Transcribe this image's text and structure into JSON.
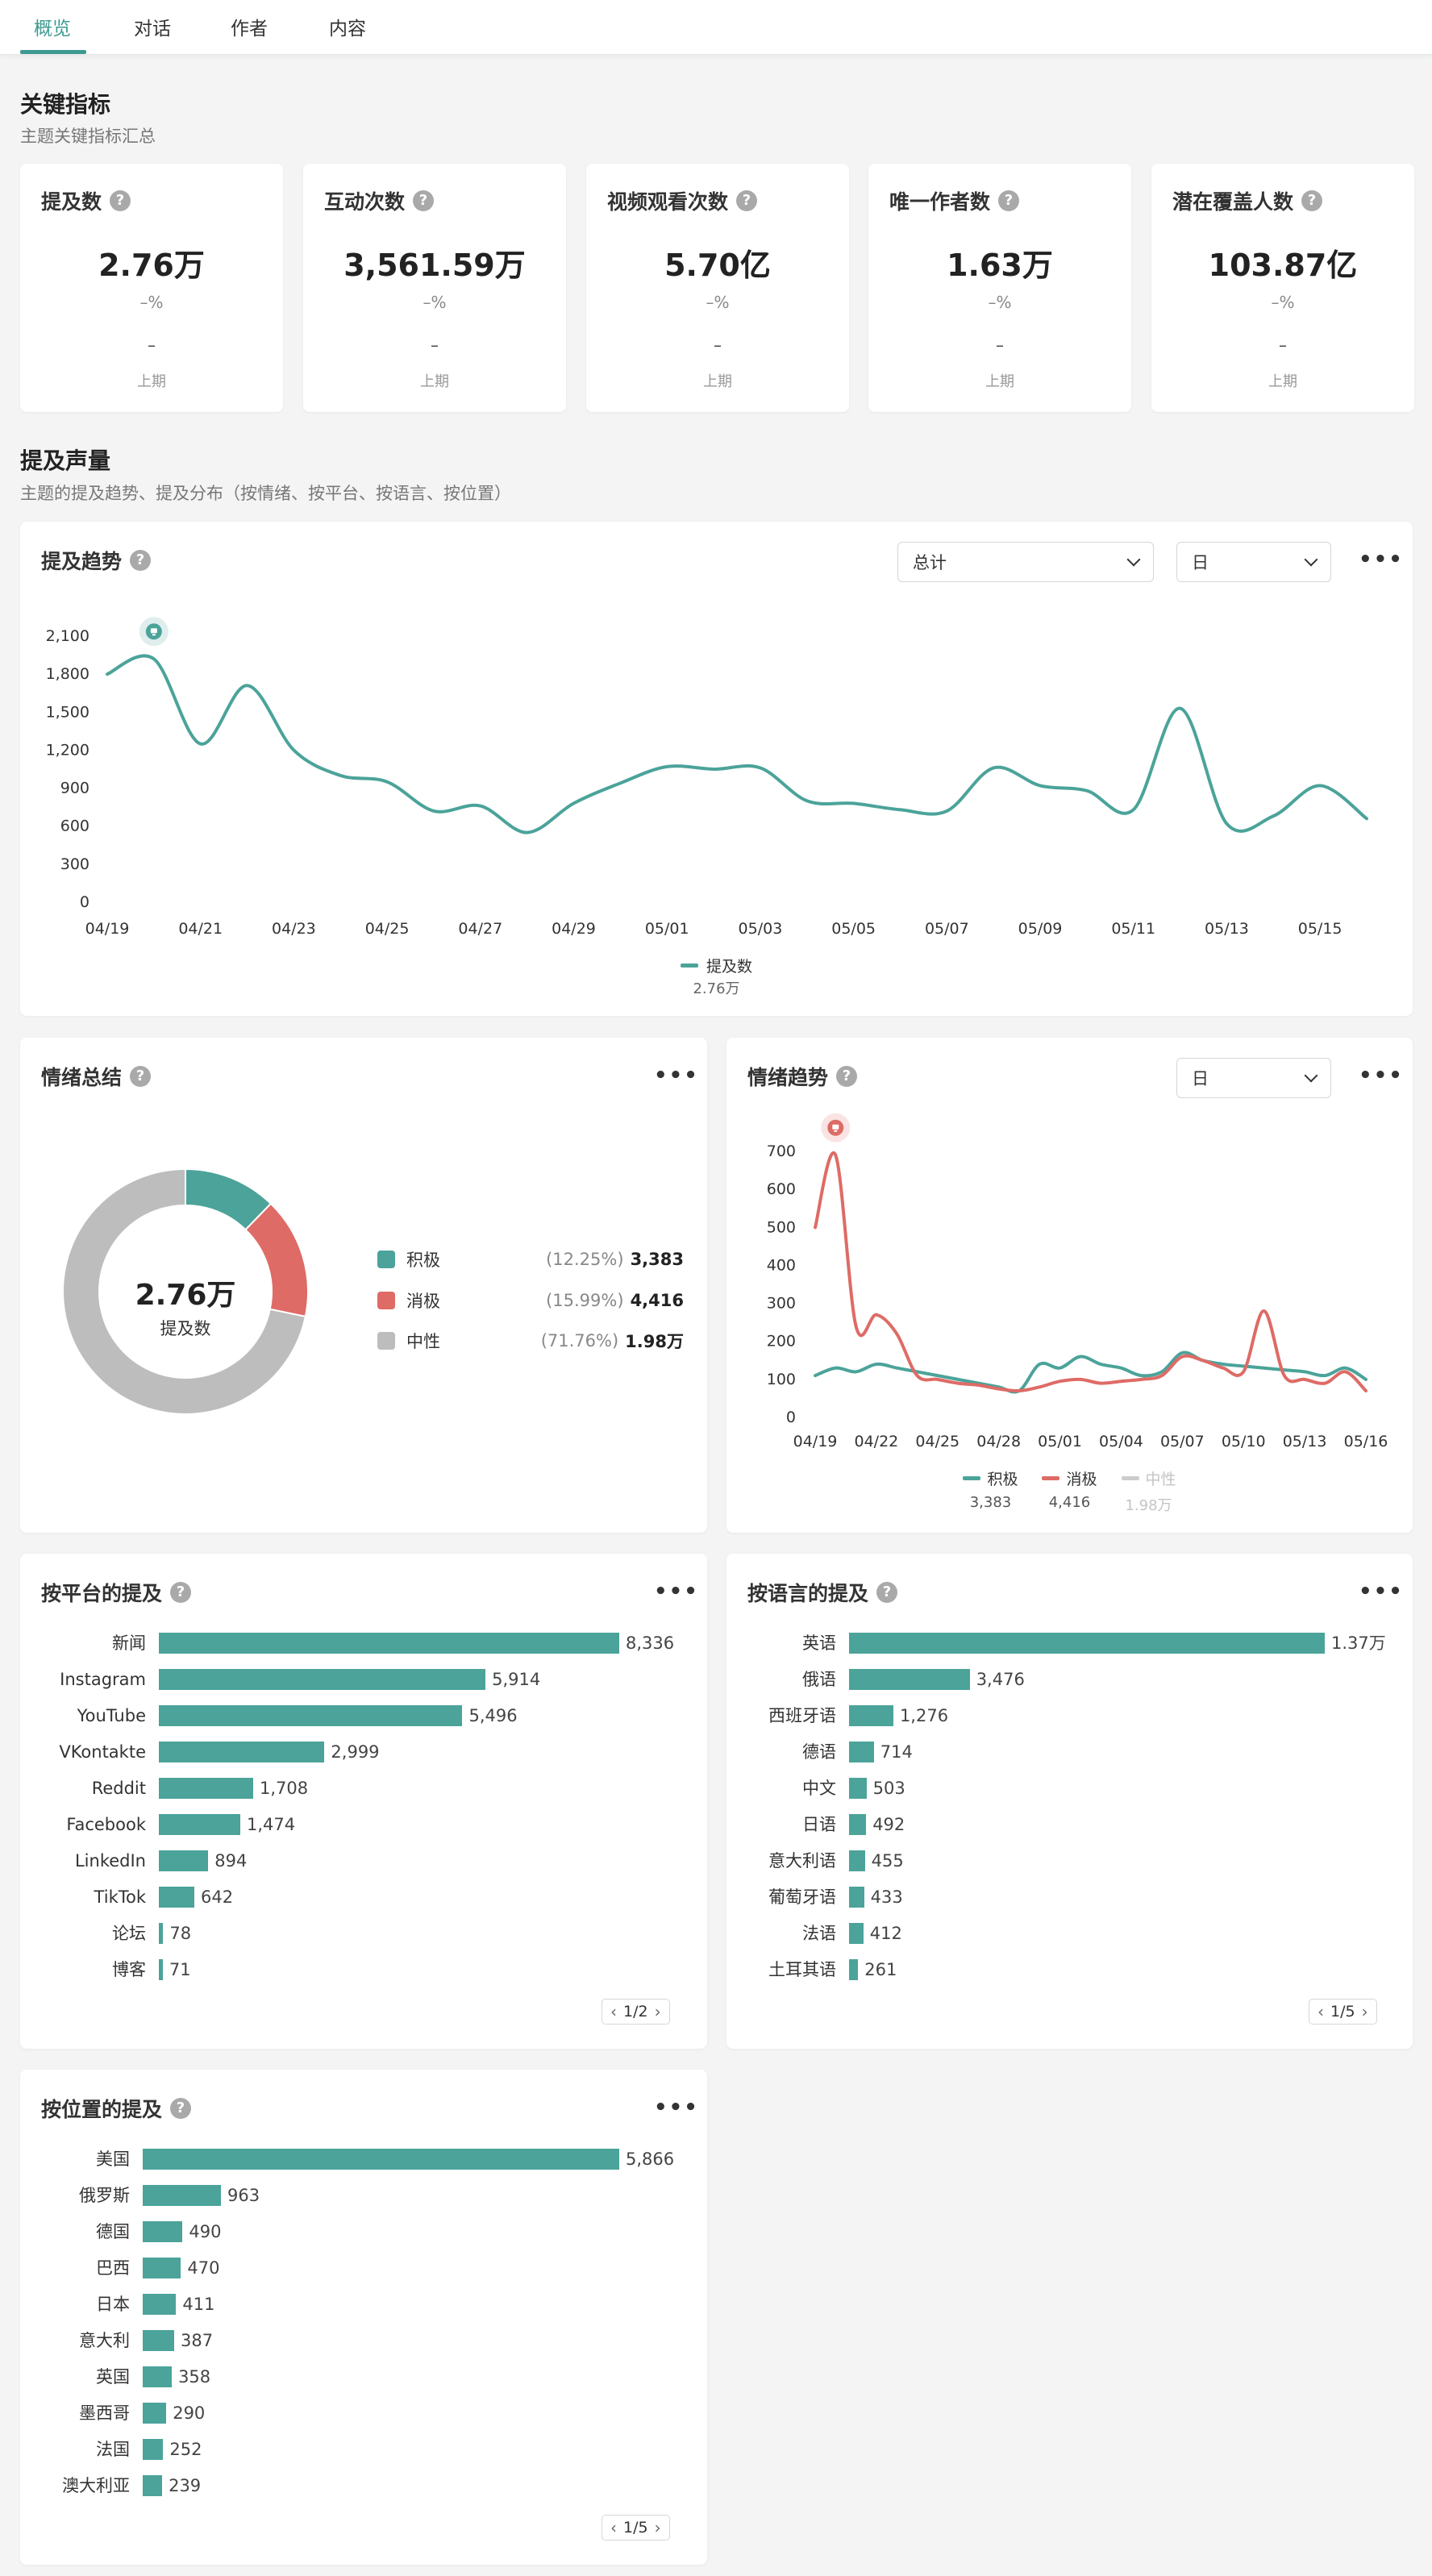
{
  "tabs": [
    {
      "label": "概览",
      "active": true
    },
    {
      "label": "对话",
      "active": false
    },
    {
      "label": "作者",
      "active": false
    },
    {
      "label": "内容",
      "active": false
    }
  ],
  "key_metrics": {
    "title": "关键指标",
    "subtitle": "主题关键指标汇总",
    "cards": [
      {
        "title": "提及数",
        "value": "2.76万",
        "pct": "–%",
        "dash": "–",
        "prev": "上期"
      },
      {
        "title": "互动次数",
        "value": "3,561.59万",
        "pct": "–%",
        "dash": "–",
        "prev": "上期"
      },
      {
        "title": "视频观看次数",
        "value": "5.70亿",
        "pct": "–%",
        "dash": "–",
        "prev": "上期"
      },
      {
        "title": "唯一作者数",
        "value": "1.63万",
        "pct": "–%",
        "dash": "–",
        "prev": "上期"
      },
      {
        "title": "潜在覆盖人数",
        "value": "103.87亿",
        "pct": "–%",
        "dash": "–",
        "prev": "上期"
      }
    ]
  },
  "volume": {
    "title": "提及声量",
    "subtitle": "主题的提及趋势、提及分布（按情绪、按平台、按语言、按位置）"
  },
  "help_glyph": "?",
  "more_glyph": "•••",
  "trend_card": {
    "title": "提及趋势",
    "dropdown_total": "总计",
    "dropdown_period": "日",
    "legend_name": "提及数",
    "legend_value": "2.76万"
  },
  "sentiment_summary": {
    "title": "情绪总结",
    "center_value": "2.76万",
    "center_label": "提及数",
    "items": [
      {
        "label": "积极",
        "pct": "(12.25%)",
        "value": "3,383",
        "color": "#4ba39a"
      },
      {
        "label": "消极",
        "pct": "(15.99%)",
        "value": "4,416",
        "color": "#de6b66"
      },
      {
        "label": "中性",
        "pct": "(71.76%)",
        "value": "1.98万",
        "color": "#bdbdbd"
      }
    ]
  },
  "sentiment_trend_card": {
    "title": "情绪趋势",
    "dropdown_period": "日",
    "legend": [
      {
        "name": "积极",
        "value": "3,383",
        "color": "#4ba39a"
      },
      {
        "name": "消极",
        "value": "4,416",
        "color": "#de6b66"
      },
      {
        "name": "中性",
        "value": "1.98万",
        "color": "#cccccc"
      }
    ]
  },
  "platform_card": {
    "title": "按平台的提及",
    "pager": "1/2",
    "max": 8336,
    "items": [
      {
        "label": "新闻",
        "value": 8336,
        "display": "8,336"
      },
      {
        "label": "Instagram",
        "value": 5914,
        "display": "5,914"
      },
      {
        "label": "YouTube",
        "value": 5496,
        "display": "5,496"
      },
      {
        "label": "VKontakte",
        "value": 2999,
        "display": "2,999"
      },
      {
        "label": "Reddit",
        "value": 1708,
        "display": "1,708"
      },
      {
        "label": "Facebook",
        "value": 1474,
        "display": "1,474"
      },
      {
        "label": "LinkedIn",
        "value": 894,
        "display": "894"
      },
      {
        "label": "TikTok",
        "value": 642,
        "display": "642"
      },
      {
        "label": "论坛",
        "value": 78,
        "display": "78"
      },
      {
        "label": "博客",
        "value": 71,
        "display": "71"
      }
    ]
  },
  "language_card": {
    "title": "按语言的提及",
    "pager": "1/5",
    "max": 13700,
    "items": [
      {
        "label": "英语",
        "value": 13700,
        "display": "1.37万"
      },
      {
        "label": "俄语",
        "value": 3476,
        "display": "3,476"
      },
      {
        "label": "西班牙语",
        "value": 1276,
        "display": "1,276"
      },
      {
        "label": "德语",
        "value": 714,
        "display": "714"
      },
      {
        "label": "中文",
        "value": 503,
        "display": "503"
      },
      {
        "label": "日语",
        "value": 492,
        "display": "492"
      },
      {
        "label": "意大利语",
        "value": 455,
        "display": "455"
      },
      {
        "label": "葡萄牙语",
        "value": 433,
        "display": "433"
      },
      {
        "label": "法语",
        "value": 412,
        "display": "412"
      },
      {
        "label": "土耳其语",
        "value": 261,
        "display": "261"
      }
    ]
  },
  "location_card": {
    "title": "按位置的提及",
    "pager": "1/5",
    "max": 5866,
    "items": [
      {
        "label": "美国",
        "value": 5866,
        "display": "5,866"
      },
      {
        "label": "俄罗斯",
        "value": 963,
        "display": "963"
      },
      {
        "label": "德国",
        "value": 490,
        "display": "490"
      },
      {
        "label": "巴西",
        "value": 470,
        "display": "470"
      },
      {
        "label": "日本",
        "value": 411,
        "display": "411"
      },
      {
        "label": "意大利",
        "value": 387,
        "display": "387"
      },
      {
        "label": "英国",
        "value": 358,
        "display": "358"
      },
      {
        "label": "墨西哥",
        "value": 290,
        "display": "290"
      },
      {
        "label": "法国",
        "value": 252,
        "display": "252"
      },
      {
        "label": "澳大利亚",
        "value": 239,
        "display": "239"
      }
    ]
  },
  "chart_data": [
    {
      "type": "line",
      "y_ticks": [
        0,
        300,
        600,
        900,
        1200,
        1500,
        1800,
        2100
      ],
      "ylim": [
        0,
        2100
      ],
      "x_tick_labels": [
        "04/19",
        "04/21",
        "04/23",
        "04/25",
        "04/27",
        "04/29",
        "05/01",
        "05/03",
        "05/05",
        "05/07",
        "05/09",
        "05/11",
        "05/13",
        "05/15"
      ],
      "x": [
        "04/19",
        "04/20",
        "04/21",
        "04/22",
        "04/23",
        "04/24",
        "04/25",
        "04/26",
        "04/27",
        "04/28",
        "04/29",
        "04/30",
        "05/01",
        "05/02",
        "05/03",
        "05/04",
        "05/05",
        "05/06",
        "05/07",
        "05/08",
        "05/09",
        "05/10",
        "05/11",
        "05/12",
        "05/13",
        "05/14",
        "05/15",
        "05/16"
      ],
      "series": [
        {
          "name": "提及数",
          "color": "#4ba39a",
          "values": [
            1800,
            1920,
            1250,
            1710,
            1200,
            1000,
            950,
            720,
            760,
            550,
            780,
            940,
            1070,
            1050,
            1060,
            800,
            780,
            730,
            720,
            1060,
            920,
            880,
            730,
            1530,
            620,
            680,
            920,
            660
          ]
        }
      ],
      "annotation_index": 1
    },
    {
      "type": "donut",
      "slices": [
        {
          "name": "积极",
          "value": 3383,
          "color": "#4ba39a"
        },
        {
          "name": "消极",
          "value": 4416,
          "color": "#de6b66"
        },
        {
          "name": "中性",
          "value": 19800,
          "color": "#bdbdbd"
        }
      ]
    },
    {
      "type": "line",
      "y_ticks": [
        0,
        100,
        200,
        300,
        400,
        500,
        600,
        700
      ],
      "ylim": [
        0,
        700
      ],
      "x_tick_labels": [
        "04/19",
        "04/22",
        "04/25",
        "04/28",
        "05/01",
        "05/04",
        "05/07",
        "05/10",
        "05/13",
        "05/16"
      ],
      "x": [
        "04/19",
        "04/20",
        "04/21",
        "04/22",
        "04/23",
        "04/24",
        "04/25",
        "04/26",
        "04/27",
        "04/28",
        "04/29",
        "04/30",
        "05/01",
        "05/02",
        "05/03",
        "05/04",
        "05/05",
        "05/06",
        "05/07",
        "05/08",
        "05/09",
        "05/10",
        "05/11",
        "05/12",
        "05/13",
        "05/14",
        "05/15",
        "05/16"
      ],
      "series": [
        {
          "name": "积极",
          "color": "#4ba39a",
          "values": [
            110,
            130,
            120,
            140,
            130,
            120,
            110,
            100,
            90,
            80,
            70,
            140,
            130,
            160,
            140,
            130,
            110,
            120,
            170,
            150,
            140,
            135,
            130,
            125,
            120,
            110,
            130,
            100
          ]
        },
        {
          "name": "消极",
          "color": "#de6b66",
          "values": [
            500,
            690,
            240,
            270,
            220,
            110,
            100,
            90,
            85,
            75,
            70,
            80,
            95,
            100,
            90,
            95,
            100,
            110,
            160,
            150,
            130,
            120,
            280,
            110,
            100,
            90,
            120,
            70
          ]
        }
      ],
      "annotation_index": 1
    }
  ]
}
